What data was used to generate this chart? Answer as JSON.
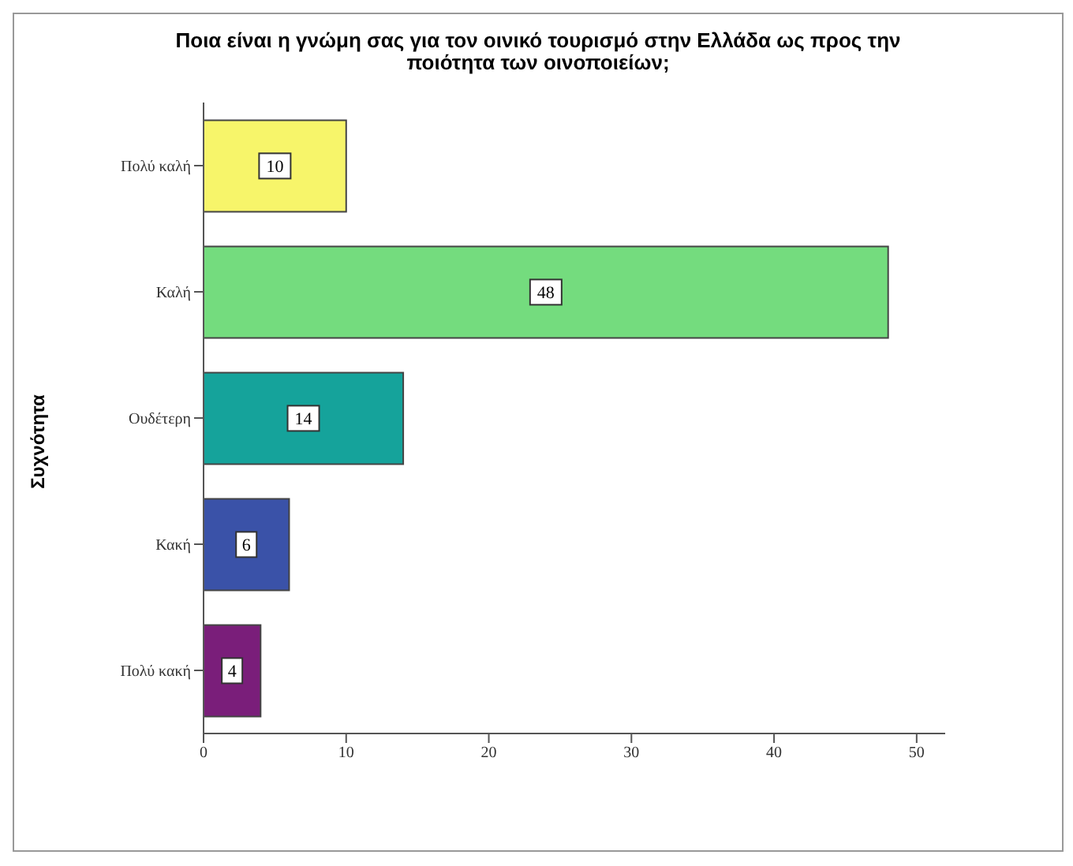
{
  "chart_data": {
    "type": "bar",
    "orientation": "horizontal",
    "title": "Ποια είναι η γνώμη σας για τον οινικό τουρισμό στην Ελλάδα ως προς την ποιότητα των οινοποιείων;",
    "ylabel": "Συχνότητα",
    "categories": [
      "Πολύ καλή",
      "Καλή",
      "Ουδέτερη",
      "Κακή",
      "Πολύ κακή"
    ],
    "values": [
      10,
      48,
      14,
      6,
      4
    ],
    "colors": [
      "#f7f56a",
      "#74dc7e",
      "#15a39b",
      "#3a52a8",
      "#7a1e7a"
    ],
    "xlim": [
      0,
      52
    ],
    "xticks": [
      0,
      10,
      20,
      30,
      40,
      50
    ],
    "data_labels": true,
    "grid": false
  }
}
